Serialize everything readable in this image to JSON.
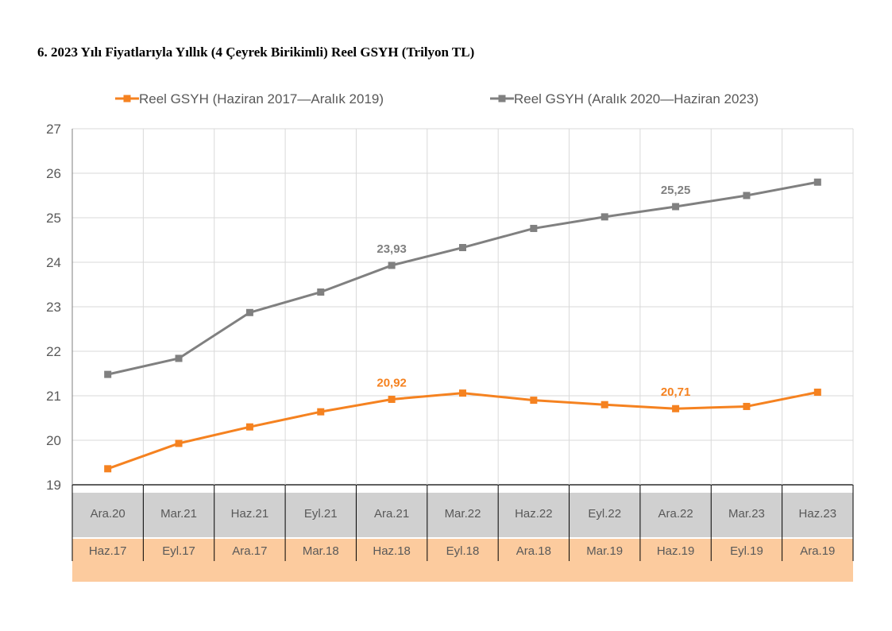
{
  "title": "6. 2023 Yılı Fiyatlarıyla Yıllık (4 Çeyrek Birikimli) Reel GSYH (Trilyon TL)",
  "chart_data": {
    "type": "line",
    "ylim": [
      19,
      27
    ],
    "yticks": [
      "19",
      "20",
      "21",
      "22",
      "23",
      "24",
      "25",
      "26",
      "27"
    ],
    "grid": true,
    "legend_position": "top",
    "categories_top": [
      "Ara.20",
      "Mar.21",
      "Haz.21",
      "Eyl.21",
      "Ara.21",
      "Mar.22",
      "Haz.22",
      "Eyl.22",
      "Ara.22",
      "Mar.23",
      "Haz.23"
    ],
    "categories_bottom": [
      "Haz.17",
      "Eyl.17",
      "Ara.17",
      "Mar.18",
      "Haz.18",
      "Eyl.18",
      "Ara.18",
      "Mar.19",
      "Haz.19",
      "Eyl.19",
      "Ara.19"
    ],
    "series": [
      {
        "name": "Reel GSYH (Haziran 2017—Aralık 2019)",
        "color": "#F58220",
        "axis": "bottom",
        "values": [
          19.36,
          19.93,
          20.3,
          20.64,
          20.92,
          21.06,
          20.9,
          20.8,
          20.71,
          20.76,
          21.08
        ],
        "labels": [
          null,
          null,
          null,
          null,
          "20,92",
          null,
          null,
          null,
          "20,71",
          null,
          null
        ]
      },
      {
        "name": "Reel GSYH (Aralık 2020—Haziran 2023)",
        "color": "#808080",
        "axis": "top",
        "values": [
          21.48,
          21.84,
          22.87,
          23.33,
          23.93,
          24.33,
          24.76,
          25.02,
          25.25,
          25.5,
          25.8
        ],
        "labels": [
          null,
          null,
          null,
          null,
          "23,93",
          null,
          null,
          null,
          "25,25",
          null,
          null
        ]
      }
    ],
    "category_band_colors": {
      "top": "#D0D0D0",
      "bottom": "#FCCB9E"
    }
  }
}
